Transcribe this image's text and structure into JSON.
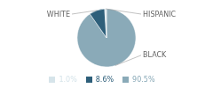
{
  "chart_data": {
    "type": "pie",
    "categories": [
      "BLACK",
      "WHITE",
      "HISPANIC"
    ],
    "values": [
      90.5,
      8.6,
      1.0
    ],
    "value_labels": [
      "90.5%",
      "8.6%",
      "1.0%"
    ],
    "colors": [
      "#8aaab8",
      "#2e5f7a",
      "#d6e4ea"
    ],
    "legend": "bottom"
  }
}
